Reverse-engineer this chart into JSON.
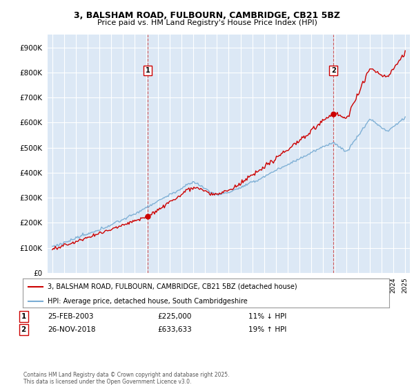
{
  "title": "3, BALSHAM ROAD, FULBOURN, CAMBRIDGE, CB21 5BZ",
  "subtitle": "Price paid vs. HM Land Registry's House Price Index (HPI)",
  "legend_line1": "3, BALSHAM ROAD, FULBOURN, CAMBRIDGE, CB21 5BZ (detached house)",
  "legend_line2": "HPI: Average price, detached house, South Cambridgeshire",
  "transaction1_date": "25-FEB-2003",
  "transaction1_price": "£225,000",
  "transaction1_hpi": "11% ↓ HPI",
  "transaction2_date": "26-NOV-2018",
  "transaction2_price": "£633,633",
  "transaction2_hpi": "19% ↑ HPI",
  "footer": "Contains HM Land Registry data © Crown copyright and database right 2025.\nThis data is licensed under the Open Government Licence v3.0.",
  "price_color": "#cc0000",
  "hpi_color": "#7aadd4",
  "background_color": "#ffffff",
  "plot_bg_color": "#dce8f5",
  "grid_color": "#ffffff",
  "ylim": [
    0,
    950000
  ],
  "yticks": [
    0,
    100000,
    200000,
    300000,
    400000,
    500000,
    600000,
    700000,
    800000,
    900000
  ],
  "purchase1_year": 2003.12,
  "purchase1_price": 225000,
  "purchase2_year": 2018.9,
  "purchase2_price": 633633
}
